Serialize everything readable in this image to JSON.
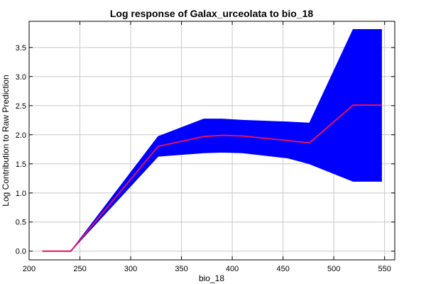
{
  "chart_data": {
    "type": "line",
    "title": "Log response of Galax_urceolata to bio_18",
    "xlabel": "bio_18",
    "ylabel": "Log Contribution to Raw Prediction",
    "xlim": [
      200,
      560
    ],
    "ylim": [
      -0.15,
      3.95
    ],
    "xticks": [
      200,
      250,
      300,
      350,
      400,
      450,
      500,
      550
    ],
    "yticks": [
      0.0,
      0.5,
      1.0,
      1.5,
      2.0,
      2.5,
      3.0,
      3.5
    ],
    "grid": true,
    "band_color": "#0000ff",
    "line_color": "#e0115f",
    "series": [
      {
        "x": [
          213,
          241,
          327,
          372,
          390,
          410,
          455,
          476,
          519,
          547
        ],
        "values": [
          0.0,
          0.0,
          1.8,
          1.97,
          1.99,
          1.98,
          1.9,
          1.86,
          2.51,
          2.51
        ]
      }
    ],
    "band": {
      "x": [
        213,
        241,
        327,
        372,
        390,
        410,
        455,
        476,
        519,
        547
      ],
      "upper": [
        0.0,
        0.0,
        1.97,
        2.27,
        2.27,
        2.25,
        2.22,
        2.2,
        3.81,
        3.81
      ],
      "lower": [
        0.0,
        0.0,
        1.63,
        1.69,
        1.7,
        1.69,
        1.6,
        1.5,
        1.2,
        1.2
      ]
    }
  }
}
